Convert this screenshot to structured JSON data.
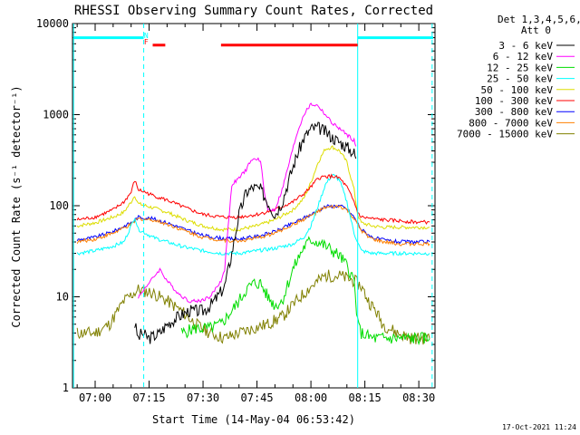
{
  "chart_data": {
    "type": "line",
    "title": "RHESSI Observing Summary Count Rates, Corrected",
    "xlabel": "Start Time (14-May-04 06:53:42)",
    "ylabel": "Corrected Count Rate (s⁻¹ detector⁻¹)",
    "x_unit": "minutes of day",
    "xlim": [
      413.7,
      514.5
    ],
    "ylim": [
      1,
      10000
    ],
    "log_y": true,
    "grid": false,
    "legend_position": "right",
    "x_ticks": [
      "07:00",
      "07:15",
      "07:30",
      "07:45",
      "08:00",
      "08:15",
      "08:30"
    ],
    "x_tick_values": [
      420,
      435,
      450,
      465,
      480,
      495,
      510
    ],
    "y_ticks": [
      "1",
      "10",
      "100",
      "1000",
      "10000"
    ],
    "y_tick_values": [
      1,
      10,
      100,
      1000,
      10000
    ],
    "legend_header": [
      "Det 1,3,4,5,6,9,",
      "Att 0"
    ],
    "series": [
      {
        "name": "3 - 6 keV",
        "color": "#000000",
        "x": [
          415,
          423,
          428,
          430,
          431,
          432,
          433,
          435,
          438,
          440,
          443,
          446,
          450,
          452,
          454,
          456,
          458,
          460,
          462,
          464,
          466,
          468,
          470,
          472,
          474,
          476,
          478,
          480,
          482,
          484,
          486,
          488,
          490,
          492,
          492.5
        ],
        "y": [
          null,
          null,
          null,
          null,
          5,
          3.5,
          4,
          3.5,
          4,
          5,
          6,
          7,
          7,
          8,
          10,
          13,
          30,
          80,
          140,
          160,
          150,
          110,
          80,
          110,
          200,
          350,
          550,
          700,
          720,
          650,
          560,
          500,
          440,
          380,
          330
        ]
      },
      {
        "name": "6 - 12 keV",
        "color": "#ff00ff",
        "x": [
          432,
          433,
          434,
          435,
          436,
          437,
          438,
          440,
          443,
          446,
          449,
          452,
          455,
          456,
          457,
          458,
          460,
          462,
          463,
          464,
          465,
          466,
          467,
          468,
          470,
          472,
          474,
          476,
          478,
          480,
          482,
          484,
          486,
          488,
          490,
          492,
          492.5
        ],
        "y": [
          10,
          11,
          13,
          14,
          16,
          18,
          20,
          15,
          11,
          9,
          9,
          10,
          15,
          20,
          60,
          170,
          200,
          250,
          300,
          320,
          330,
          300,
          150,
          90,
          90,
          150,
          300,
          600,
          1000,
          1300,
          1250,
          1000,
          800,
          700,
          600,
          520,
          450
        ]
      },
      {
        "name": "12 - 25 keV",
        "color": "#00dd00",
        "x": [
          415,
          423,
          428,
          432,
          436,
          440,
          444,
          448,
          452,
          455,
          458,
          460,
          462,
          464,
          466,
          468,
          470,
          472,
          475,
          478,
          480,
          482,
          484,
          486,
          488,
          490,
          492,
          493,
          494,
          497,
          500,
          505,
          510,
          513
        ],
        "y": [
          null,
          null,
          null,
          null,
          null,
          null,
          4,
          4.5,
          4.5,
          5,
          7,
          9,
          12,
          14,
          14,
          10,
          8,
          9,
          20,
          35,
          42,
          40,
          36,
          32,
          28,
          22,
          15,
          5,
          4,
          3.5,
          3.5,
          3.5,
          3.5,
          3.5
        ]
      },
      {
        "name": "25 - 50 keV",
        "color": "#00ffff",
        "x": [
          415,
          420,
          425,
          428,
          430,
          431,
          432,
          434,
          436,
          440,
          445,
          450,
          455,
          460,
          465,
          470,
          475,
          478,
          480,
          482,
          484,
          486,
          488,
          490,
          492,
          493,
          494,
          497,
          500,
          505,
          510,
          513
        ],
        "y": [
          30,
          32,
          36,
          40,
          60,
          75,
          55,
          50,
          45,
          40,
          35,
          32,
          30,
          30,
          32,
          34,
          38,
          45,
          60,
          100,
          170,
          220,
          190,
          110,
          50,
          40,
          32,
          30,
          30,
          30,
          30,
          30
        ]
      },
      {
        "name": "50 - 100 keV",
        "color": "#dddd00",
        "x": [
          415,
          420,
          425,
          428,
          430,
          431,
          432,
          434,
          436,
          440,
          445,
          450,
          455,
          460,
          465,
          470,
          475,
          478,
          480,
          482,
          484,
          486,
          488,
          490,
          492,
          493,
          494,
          497,
          500,
          505,
          510,
          513
        ],
        "y": [
          60,
          65,
          75,
          85,
          110,
          130,
          105,
          100,
          95,
          85,
          70,
          60,
          55,
          55,
          60,
          70,
          90,
          120,
          180,
          300,
          420,
          440,
          400,
          300,
          150,
          80,
          65,
          60,
          58,
          58,
          58,
          58
        ]
      },
      {
        "name": "100 - 300 keV",
        "color": "#ff0000",
        "x": [
          415,
          420,
          425,
          428,
          430,
          431,
          432,
          434,
          436,
          440,
          445,
          450,
          455,
          460,
          465,
          470,
          475,
          478,
          480,
          482,
          484,
          486,
          488,
          490,
          492,
          493,
          494,
          497,
          500,
          505,
          510,
          513
        ],
        "y": [
          70,
          75,
          90,
          110,
          140,
          190,
          150,
          140,
          130,
          115,
          95,
          80,
          75,
          75,
          80,
          90,
          110,
          135,
          160,
          200,
          210,
          210,
          200,
          160,
          110,
          85,
          75,
          72,
          70,
          68,
          66,
          66
        ]
      },
      {
        "name": "300 - 800 keV",
        "color": "#0000ff",
        "x": [
          415,
          420,
          425,
          430,
          432,
          436,
          440,
          445,
          450,
          455,
          460,
          465,
          470,
          475,
          480,
          484,
          488,
          490,
          492,
          494,
          497,
          500,
          505,
          510,
          513
        ],
        "y": [
          42,
          45,
          52,
          65,
          75,
          72,
          65,
          55,
          47,
          44,
          43,
          46,
          52,
          64,
          80,
          98,
          100,
          92,
          75,
          55,
          45,
          42,
          40,
          40,
          40
        ]
      },
      {
        "name": "800 - 7000 keV",
        "color": "#ff8000",
        "x": [
          415,
          420,
          425,
          430,
          432,
          436,
          440,
          445,
          450,
          455,
          460,
          465,
          470,
          475,
          480,
          484,
          488,
          490,
          492,
          494,
          497,
          500,
          505,
          510,
          513
        ],
        "y": [
          40,
          43,
          50,
          62,
          72,
          70,
          63,
          53,
          45,
          42,
          41,
          44,
          50,
          62,
          78,
          95,
          98,
          90,
          72,
          53,
          43,
          40,
          38,
          38,
          38
        ]
      },
      {
        "name": "7000 - 15000 keV",
        "color": "#808000",
        "x": [
          415,
          420,
          424,
          428,
          432,
          436,
          440,
          444,
          448,
          452,
          456,
          460,
          464,
          468,
          470,
          472,
          476,
          480,
          484,
          488,
          490,
          492,
          494,
          496,
          498,
          500,
          504,
          508,
          513
        ],
        "y": [
          4,
          4,
          5,
          9,
          12,
          11,
          9,
          7,
          5,
          4,
          3.5,
          4,
          4.5,
          5,
          5.5,
          6,
          9,
          13,
          17,
          17,
          16,
          15,
          13,
          9,
          7,
          5,
          4,
          3.5,
          3.5
        ]
      }
    ],
    "annotations": [
      {
        "text": "N",
        "x": 434.2,
        "color": "#00ffff"
      },
      {
        "text": "F",
        "x": 434.2,
        "color": "#ff0000"
      }
    ],
    "status_bars": [
      {
        "color": "#00ffff",
        "x1": 414,
        "x2": 433.5,
        "y": 7000
      },
      {
        "color": "#00ffff",
        "x1": 493,
        "x2": 514,
        "y": 7000
      },
      {
        "color": "#ff0000",
        "x1": 436,
        "x2": 439.5,
        "y": 5800
      },
      {
        "color": "#ff0000",
        "x1": 455,
        "x2": 493,
        "y": 5800
      }
    ],
    "vertical_lines": [
      {
        "x": 414,
        "color": "#00ffff",
        "dashed": false
      },
      {
        "x": 433.5,
        "color": "#00ffff",
        "dashed": true
      },
      {
        "x": 493,
        "color": "#00ffff",
        "dashed": false
      },
      {
        "x": 513.7,
        "color": "#00ffff",
        "dashed": true
      }
    ]
  },
  "footer": {
    "timestamp": "17-Oct-2021 11:24"
  }
}
